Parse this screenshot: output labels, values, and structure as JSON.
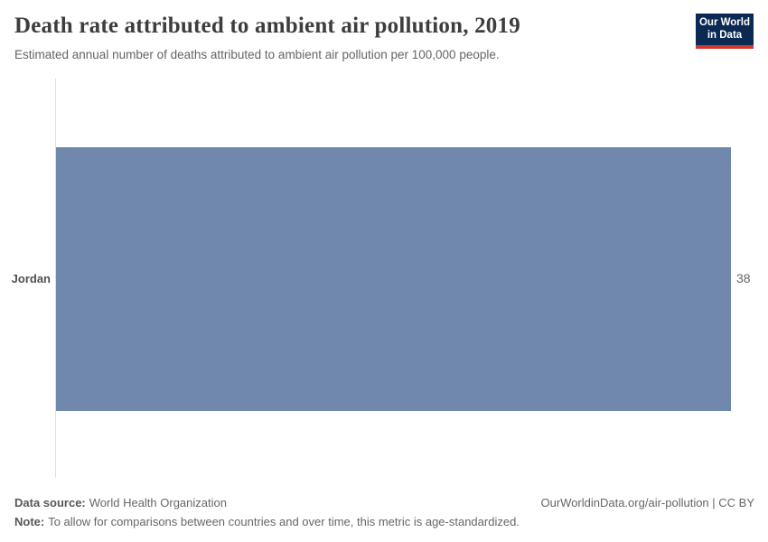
{
  "header": {
    "title": "Death rate attributed to ambient air pollution, 2019",
    "subtitle": "Estimated annual number of deaths attributed to ambient air pollution per 100,000 people.",
    "logo_line1": "Our World",
    "logo_line2": "in Data"
  },
  "chart_data": {
    "type": "bar",
    "orientation": "horizontal",
    "title": "Death rate attributed to ambient air pollution, 2019",
    "subtitle": "Estimated annual number of deaths attributed to ambient air pollution per 100,000 people.",
    "categories": [
      "Jordan"
    ],
    "values": [
      38
    ],
    "value_labels": [
      "38"
    ],
    "xlabel": "",
    "ylabel": "",
    "xlim": [
      0,
      38
    ],
    "grid": false,
    "legend": false,
    "bar_color": "#7188ad"
  },
  "footer": {
    "source_label": "Data source:",
    "source_text": "World Health Organization",
    "note_label": "Note:",
    "note_text": "To allow for comparisons between countries and over time, this metric is age-standardized.",
    "credit": "OurWorldinData.org/air-pollution | CC BY"
  },
  "colors": {
    "bar": "#7188ad",
    "logo_background": "#0a2953",
    "logo_accent": "#d0382e",
    "axis_line": "#e0e0e0",
    "title_text": "#3d3d3d",
    "subtitle_text": "#646464",
    "value_text": "#666666"
  }
}
